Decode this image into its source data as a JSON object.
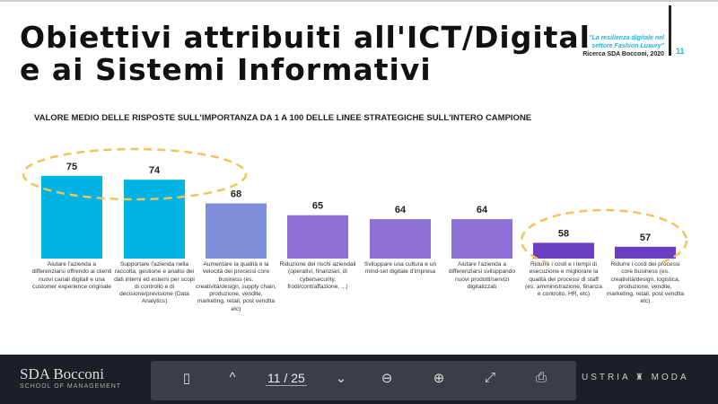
{
  "slide": {
    "title_line1": "Obiettivi attribuiti all'ICT/Digital",
    "title_line2": "e ai Sistemi Informativi",
    "reference_quote_1": "\"La resilienza digitale nel",
    "reference_quote_2": "settore Fashion Luxury\"",
    "reference_source": "Ricerca SDA Bocconi, 2020",
    "slide_number": "11"
  },
  "chart_data": {
    "type": "bar",
    "title": "VALORE MEDIO DELLE RISPOSTE SULL'IMPORTANZA DA 1 A 100 DELLE LINEE STRATEGICHE SULL'INTERO CAMPIONE",
    "categories": [
      "Aiutare l'azienda a differenziarsi offrendo ai clienti nuovi canali digitali e una customer experience originale",
      "Supportare l'azienda nella raccolta, gestione e analisi dei dati interni ed esterni per scopi di controllo e di decisione/previsione (Data Analytics)",
      "Aumentare la qualità e la velocità dei processi core business (es. creatività/design, supply chain, produzione, vendite, marketing, retail, post vendita etc)",
      "Riduzione dei rischi aziendali (operativi, finanziari, di cybersecurity, frodi/contraffazione, ...)",
      "Sviluppare una cultura e un mind-set digitale d'impresa",
      "Aiutare l'azienda a differenziarsi sviluppando nuovi prodotti/servizi digitalizzati",
      "Ridurre i costi e i tempi di esecuzione e migliorare la qualità dei processi di staff (es. amministrazione, finanza e controllo, HR, etc)",
      "Ridurre i costi dei processi core business (es. creatività/design, logistica, produzione, vendite, marketing, retail, post vendita etc)"
    ],
    "values": [
      75,
      74,
      68,
      65,
      64,
      64,
      58,
      57
    ],
    "colors": [
      "#00b3e3",
      "#00b3e3",
      "#7f8fdc",
      "#8e70d6",
      "#8e70d6",
      "#8e70d6",
      "#6a3fc6",
      "#6a3fc6"
    ],
    "highlight_color": "#f2c45a",
    "ylim": [
      54,
      80
    ],
    "xlabel": "",
    "ylabel": "",
    "grid": false
  },
  "viewer": {
    "logo_main": "SDA Bocconi",
    "logo_sub": "SCHOOL OF MANAGEMENT",
    "page_indicator": "11 / 25",
    "brand_right": "USTRIA ♜ MODA"
  }
}
